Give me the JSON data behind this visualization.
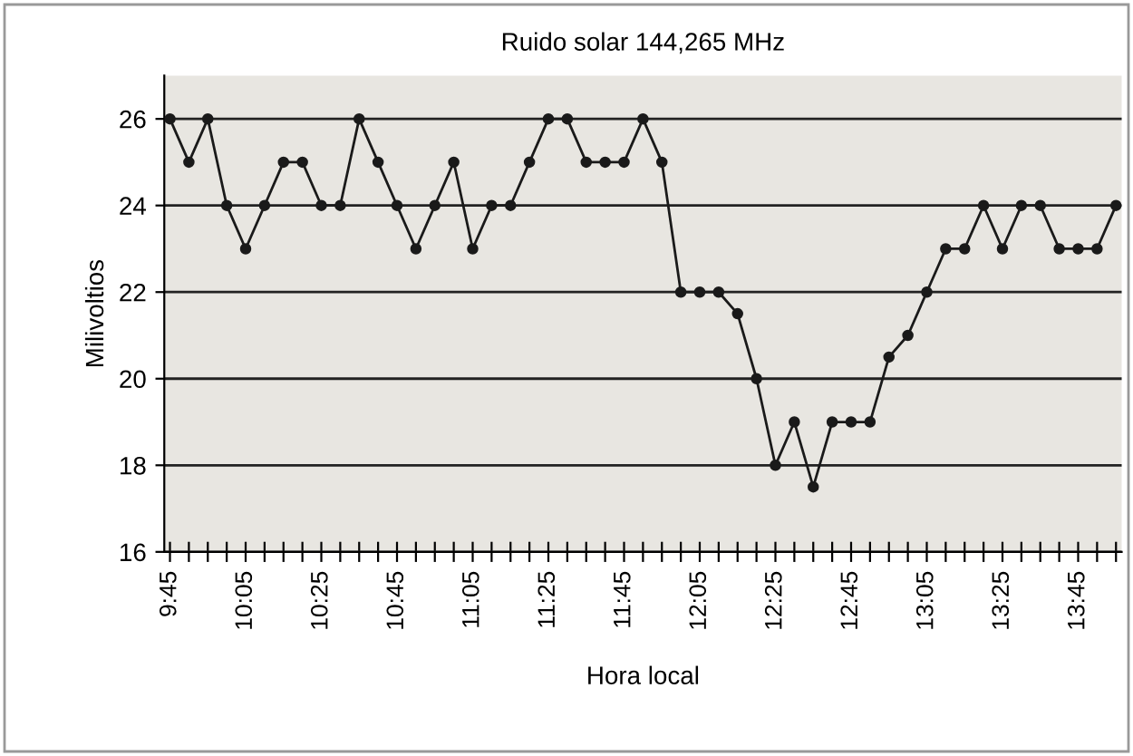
{
  "chart_data": {
    "type": "line",
    "title": "Ruido solar 144,265 MHz",
    "xlabel": "Hora local",
    "ylabel": "Milivoltios",
    "categories": [
      "9:45",
      null,
      null,
      null,
      "10:05",
      null,
      null,
      null,
      "10:25",
      null,
      null,
      null,
      "10:45",
      null,
      null,
      null,
      "11:05",
      null,
      null,
      null,
      "11:25",
      null,
      null,
      null,
      "11:45",
      null,
      null,
      null,
      "12:05",
      null,
      null,
      null,
      "12:25",
      null,
      null,
      null,
      "12:45",
      null,
      null,
      null,
      "13:05",
      null,
      null,
      null,
      "13:25",
      null,
      null,
      null,
      "13:45",
      null,
      null
    ],
    "series": [
      {
        "color": "#1a1a1a",
        "values": [
          26,
          25,
          26,
          24,
          23,
          24,
          25,
          25,
          24,
          24,
          26,
          25,
          24,
          23,
          24,
          25,
          23,
          24,
          24,
          25,
          26,
          26,
          25,
          25,
          25,
          26,
          25,
          22,
          22,
          22,
          21.5,
          20,
          18,
          19,
          17.5,
          19,
          19,
          19,
          20.5,
          21,
          22,
          23,
          23,
          24,
          23,
          24,
          24,
          23,
          23,
          23,
          24
        ]
      }
    ],
    "ylim": [
      16,
      27
    ],
    "yticks": [
      16,
      18,
      20,
      22,
      24,
      26
    ],
    "grid": "y",
    "marker": "circle",
    "line_style": "solid",
    "legend": false
  }
}
